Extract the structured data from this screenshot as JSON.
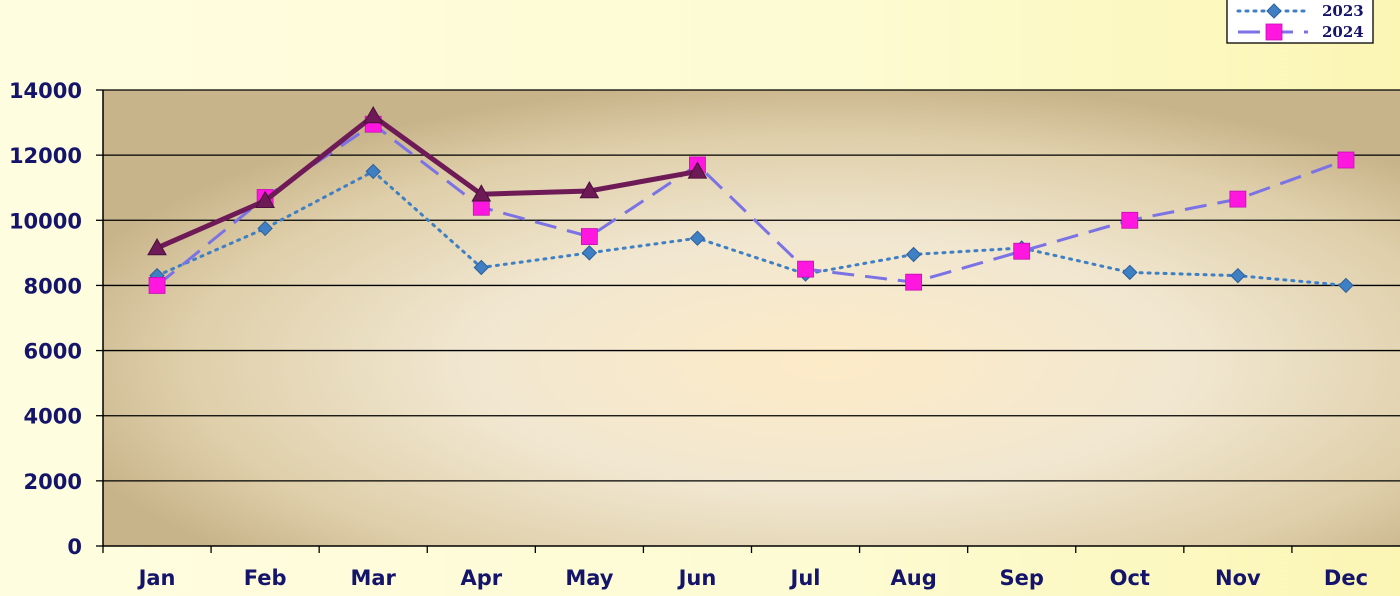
{
  "chart_data": {
    "type": "line",
    "categories": [
      "Jan",
      "Feb",
      "Mar",
      "Apr",
      "May",
      "Jun",
      "Jul",
      "Aug",
      "Sep",
      "Oct",
      "Nov",
      "Dec"
    ],
    "ylim": [
      0,
      14000
    ],
    "yticks": [
      0,
      2000,
      4000,
      6000,
      8000,
      10000,
      12000,
      14000
    ],
    "grid": true,
    "legend_position": "top-right",
    "title": "",
    "xlabel": "",
    "ylabel": "",
    "series": [
      {
        "name": "2023",
        "color": "#3f7fc4",
        "line_style": "dotted",
        "marker": "diamond",
        "values": [
          8300,
          9750,
          11500,
          8550,
          9000,
          9450,
          8350,
          8950,
          9150,
          8400,
          8300,
          8000
        ]
      },
      {
        "name": "2024",
        "color": "#7b72e6",
        "marker_color": "#ff17e0",
        "line_style": "dashed",
        "marker": "square",
        "values": [
          8000,
          10700,
          12950,
          10400,
          9500,
          11700,
          8500,
          8100,
          9050,
          10000,
          10650,
          11850
        ]
      },
      {
        "name": "",
        "color": "#6e1a56",
        "line_style": "solid",
        "marker": "triangle",
        "values": [
          9150,
          10600,
          13200,
          10800,
          10900,
          11500,
          null,
          null,
          null,
          null,
          null,
          null
        ]
      }
    ]
  }
}
